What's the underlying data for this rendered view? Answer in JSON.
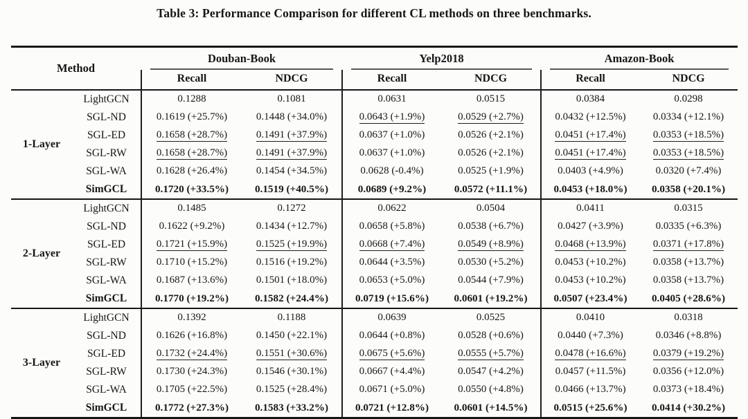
{
  "title": "Table 3: Performance Comparison for different CL methods on three benchmarks.",
  "colors": {
    "text": "#161616",
    "heavy_rule": "#151515",
    "cmidrule": "#565656",
    "background": "#fcfcfa"
  },
  "table": {
    "method_header": "Method",
    "benchmarks": [
      "Douban-Book",
      "Yelp2018",
      "Amazon-Book"
    ],
    "metric_headers": [
      "Recall",
      "NDCG"
    ],
    "groups": [
      {
        "layer": "1-Layer",
        "rows": [
          {
            "method": "LightGCN",
            "bold": false,
            "values": [
              "0.1288",
              "0.1081",
              "0.0631",
              "0.0515",
              "0.0384",
              "0.0298"
            ],
            "underl": [
              false,
              false,
              false,
              false,
              false,
              false
            ]
          },
          {
            "method": "SGL-ND",
            "bold": false,
            "values": [
              "0.1619 (+25.7%)",
              "0.1448 (+34.0%)",
              "0.0643 (+1.9%)",
              "0.0529 (+2.7%)",
              "0.0432 (+12.5%)",
              "0.0334 (+12.1%)"
            ],
            "underl": [
              false,
              false,
              true,
              true,
              false,
              false
            ]
          },
          {
            "method": "SGL-ED",
            "bold": false,
            "values": [
              "0.1658 (+28.7%)",
              "0.1491 (+37.9%)",
              "0.0637 (+1.0%)",
              "0.0526 (+2.1%)",
              "0.0451 (+17.4%)",
              "0.0353 (+18.5%)"
            ],
            "underl": [
              true,
              true,
              false,
              false,
              true,
              true
            ]
          },
          {
            "method": "SGL-RW",
            "bold": false,
            "values": [
              "0.1658 (+28.7%)",
              "0.1491 (+37.9%)",
              "0.0637 (+1.0%)",
              "0.0526 (+2.1%)",
              "0.0451 (+17.4%)",
              "0.0353 (+18.5%)"
            ],
            "underl": [
              true,
              true,
              false,
              false,
              true,
              true
            ]
          },
          {
            "method": "SGL-WA",
            "bold": false,
            "values": [
              "0.1628 (+26.4%)",
              "0.1454 (+34.5%)",
              "0.0628 (-0.4%)",
              "0.0525 (+1.9%)",
              "0.0403 (+4.9%)",
              "0.0320 (+7.4%)"
            ],
            "underl": [
              false,
              false,
              false,
              false,
              false,
              false
            ]
          },
          {
            "method": "SimGCL",
            "bold": true,
            "values": [
              "0.1720 (+33.5%)",
              "0.1519 (+40.5%)",
              "0.0689 (+9.2%)",
              "0.0572 (+11.1%)",
              "0.0453 (+18.0%)",
              "0.0358 (+20.1%)"
            ],
            "underl": [
              false,
              false,
              false,
              false,
              false,
              false
            ]
          }
        ]
      },
      {
        "layer": "2-Layer",
        "rows": [
          {
            "method": "LightGCN",
            "bold": false,
            "values": [
              "0.1485",
              "0.1272",
              "0.0622",
              "0.0504",
              "0.0411",
              "0.0315"
            ],
            "underl": [
              false,
              false,
              false,
              false,
              false,
              false
            ]
          },
          {
            "method": "SGL-ND",
            "bold": false,
            "values": [
              "0.1622 (+9.2%)",
              "0.1434 (+12.7%)",
              "0.0658 (+5.8%)",
              "0.0538 (+6.7%)",
              "0.0427 (+3.9%)",
              "0.0335 (+6.3%)"
            ],
            "underl": [
              false,
              false,
              false,
              false,
              false,
              false
            ]
          },
          {
            "method": "SGL-ED",
            "bold": false,
            "values": [
              "0.1721 (+15.9%)",
              "0.1525 (+19.9%)",
              "0.0668 (+7.4%)",
              "0.0549 (+8.9%)",
              "0.0468 (+13.9%)",
              "0.0371 (+17.8%)"
            ],
            "underl": [
              true,
              true,
              true,
              true,
              true,
              true
            ]
          },
          {
            "method": "SGL-RW",
            "bold": false,
            "values": [
              "0.1710 (+15.2%)",
              "0.1516 (+19.2%)",
              "0.0644 (+3.5%)",
              "0.0530 (+5.2%)",
              "0.0453 (+10.2%)",
              "0.0358 (+13.7%)"
            ],
            "underl": [
              false,
              false,
              false,
              false,
              false,
              false
            ]
          },
          {
            "method": "SGL-WA",
            "bold": false,
            "values": [
              "0.1687 (+13.6%)",
              "0.1501 (+18.0%)",
              "0.0653 (+5.0%)",
              "0.0544 (+7.9%)",
              "0.0453 (+10.2%)",
              "0.0358 (+13.7%)"
            ],
            "underl": [
              false,
              false,
              false,
              false,
              false,
              false
            ]
          },
          {
            "method": "SimGCL",
            "bold": true,
            "values": [
              "0.1770 (+19.2%)",
              "0.1582 (+24.4%)",
              "0.0719 (+15.6%)",
              "0.0601 (+19.2%)",
              "0.0507 (+23.4%)",
              "0.0405 (+28.6%)"
            ],
            "underl": [
              false,
              false,
              false,
              false,
              false,
              false
            ]
          }
        ]
      },
      {
        "layer": "3-Layer",
        "rows": [
          {
            "method": "LightGCN",
            "bold": false,
            "values": [
              "0.1392",
              "0.1188",
              "0.0639",
              "0.0525",
              "0.0410",
              "0.0318"
            ],
            "underl": [
              false,
              false,
              false,
              false,
              false,
              false
            ]
          },
          {
            "method": "SGL-ND",
            "bold": false,
            "values": [
              "0.1626 (+16.8%)",
              "0.1450 (+22.1%)",
              "0.0644 (+0.8%)",
              "0.0528 (+0.6%)",
              "0.0440 (+7.3%)",
              "0.0346 (+8.8%)"
            ],
            "underl": [
              false,
              false,
              false,
              false,
              false,
              false
            ]
          },
          {
            "method": "SGL-ED",
            "bold": false,
            "values": [
              "0.1732 (+24.4%)",
              "0.1551 (+30.6%)",
              "0.0675 (+5.6%)",
              "0.0555 (+5.7%)",
              "0.0478 (+16.6%)",
              "0.0379 (+19.2%)"
            ],
            "underl": [
              true,
              true,
              true,
              true,
              true,
              true
            ]
          },
          {
            "method": "SGL-RW",
            "bold": false,
            "values": [
              "0.1730 (+24.3%)",
              "0.1546 (+30.1%)",
              "0.0667 (+4.4%)",
              "0.0547 (+4.2%)",
              "0.0457 (+11.5%)",
              "0.0356 (+12.0%)"
            ],
            "underl": [
              false,
              false,
              false,
              false,
              false,
              false
            ]
          },
          {
            "method": "SGL-WA",
            "bold": false,
            "values": [
              "0.1705 (+22.5%)",
              "0.1525 (+28.4%)",
              "0.0671 (+5.0%)",
              "0.0550 (+4.8%)",
              "0.0466 (+13.7%)",
              "0.0373 (+18.4%)"
            ],
            "underl": [
              false,
              false,
              false,
              false,
              false,
              false
            ]
          },
          {
            "method": "SimGCL",
            "bold": true,
            "values": [
              "0.1772 (+27.3%)",
              "0.1583 (+33.2%)",
              "0.0721 (+12.8%)",
              "0.0601 (+14.5%)",
              "0.0515 (+25.6%)",
              "0.0414 (+30.2%)"
            ],
            "underl": [
              false,
              false,
              false,
              false,
              false,
              false
            ]
          }
        ]
      }
    ]
  }
}
